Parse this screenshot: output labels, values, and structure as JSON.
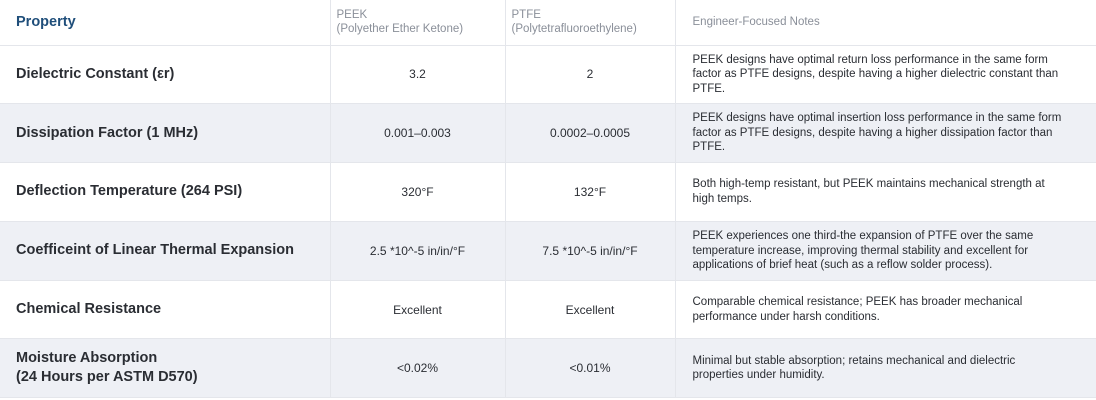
{
  "table": {
    "header": {
      "property": "Property",
      "peek": {
        "name": "PEEK",
        "subtitle": "(Polyether Ether Ketone)"
      },
      "ptfe": {
        "name": "PTFE",
        "subtitle": "(Polytetrafluoroethylene)"
      },
      "notes": "Engineer-Focused Notes"
    },
    "rows": [
      [
        "Dielectric Constant (εr)",
        "3.2",
        "2",
        "PEEK designs have optimal return loss performance in the same form factor as PTFE designs, despite having a higher dielectric constant than PTFE."
      ],
      [
        "Dissipation Factor (1 MHz)",
        "0.001–0.003",
        "0.0002–0.0005",
        "PEEK designs have optimal insertion loss performance in the same form factor as PTFE designs, despite having a higher dissipation factor than PTFE."
      ],
      [
        "Deflection Temperature (264 PSI)",
        "320°F",
        "132°F",
        "Both high-temp resistant, but PEEK maintains mechanical strength at high temps."
      ],
      [
        "Coefficeint of Linear Thermal Expansion",
        "2.5 *10^-5 in/in/°F",
        "7.5 *10^-5 in/in/°F",
        "PEEK experiences one third-the expansion of PTFE over the same temperature increase, improving thermal stability and excellent for applications of brief heat (such as a reflow solder process)."
      ],
      [
        "Chemical Resistance",
        "Excellent",
        "Excellent",
        "Comparable chemical resistance; PEEK has broader mechanical performance under harsh conditions."
      ],
      [
        "Moisture Absorption\n(24 Hours per ASTM D570)",
        "<0.02%",
        "<0.01%",
        "Minimal but stable absorption; retains mechanical and dielectric properties under humidity."
      ]
    ]
  }
}
